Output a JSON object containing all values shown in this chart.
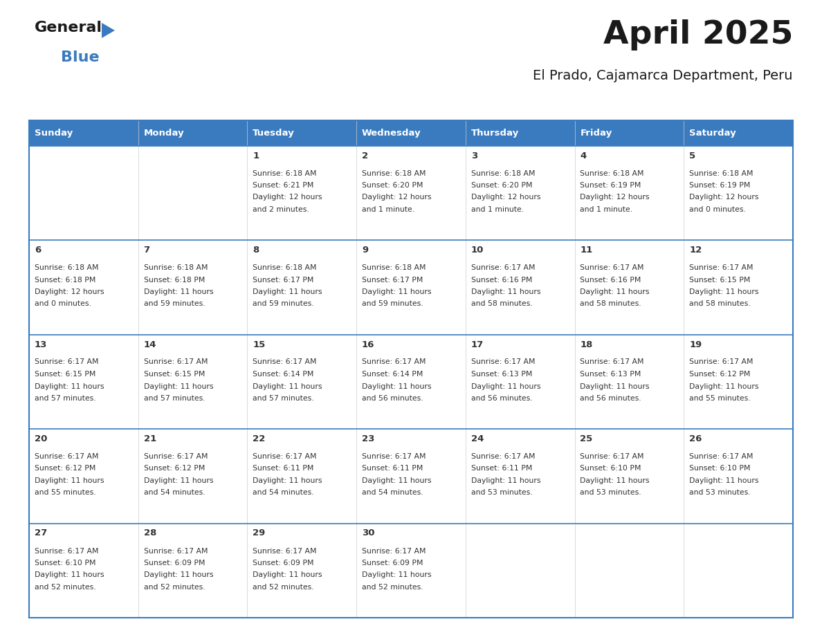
{
  "title": "April 2025",
  "subtitle": "El Prado, Cajamarca Department, Peru",
  "header_bg": "#3a7bbf",
  "header_text": "#ffffff",
  "border_color": "#3a7bbf",
  "text_color": "#333333",
  "cell_bg": "#ffffff",
  "alt_cell_bg": "#f2f2f2",
  "day_headers": [
    "Sunday",
    "Monday",
    "Tuesday",
    "Wednesday",
    "Thursday",
    "Friday",
    "Saturday"
  ],
  "weeks": [
    [
      {
        "day": "",
        "lines": []
      },
      {
        "day": "",
        "lines": []
      },
      {
        "day": "1",
        "lines": [
          "Sunrise: 6:18 AM",
          "Sunset: 6:21 PM",
          "Daylight: 12 hours",
          "and 2 minutes."
        ]
      },
      {
        "day": "2",
        "lines": [
          "Sunrise: 6:18 AM",
          "Sunset: 6:20 PM",
          "Daylight: 12 hours",
          "and 1 minute."
        ]
      },
      {
        "day": "3",
        "lines": [
          "Sunrise: 6:18 AM",
          "Sunset: 6:20 PM",
          "Daylight: 12 hours",
          "and 1 minute."
        ]
      },
      {
        "day": "4",
        "lines": [
          "Sunrise: 6:18 AM",
          "Sunset: 6:19 PM",
          "Daylight: 12 hours",
          "and 1 minute."
        ]
      },
      {
        "day": "5",
        "lines": [
          "Sunrise: 6:18 AM",
          "Sunset: 6:19 PM",
          "Daylight: 12 hours",
          "and 0 minutes."
        ]
      }
    ],
    [
      {
        "day": "6",
        "lines": [
          "Sunrise: 6:18 AM",
          "Sunset: 6:18 PM",
          "Daylight: 12 hours",
          "and 0 minutes."
        ]
      },
      {
        "day": "7",
        "lines": [
          "Sunrise: 6:18 AM",
          "Sunset: 6:18 PM",
          "Daylight: 11 hours",
          "and 59 minutes."
        ]
      },
      {
        "day": "8",
        "lines": [
          "Sunrise: 6:18 AM",
          "Sunset: 6:17 PM",
          "Daylight: 11 hours",
          "and 59 minutes."
        ]
      },
      {
        "day": "9",
        "lines": [
          "Sunrise: 6:18 AM",
          "Sunset: 6:17 PM",
          "Daylight: 11 hours",
          "and 59 minutes."
        ]
      },
      {
        "day": "10",
        "lines": [
          "Sunrise: 6:17 AM",
          "Sunset: 6:16 PM",
          "Daylight: 11 hours",
          "and 58 minutes."
        ]
      },
      {
        "day": "11",
        "lines": [
          "Sunrise: 6:17 AM",
          "Sunset: 6:16 PM",
          "Daylight: 11 hours",
          "and 58 minutes."
        ]
      },
      {
        "day": "12",
        "lines": [
          "Sunrise: 6:17 AM",
          "Sunset: 6:15 PM",
          "Daylight: 11 hours",
          "and 58 minutes."
        ]
      }
    ],
    [
      {
        "day": "13",
        "lines": [
          "Sunrise: 6:17 AM",
          "Sunset: 6:15 PM",
          "Daylight: 11 hours",
          "and 57 minutes."
        ]
      },
      {
        "day": "14",
        "lines": [
          "Sunrise: 6:17 AM",
          "Sunset: 6:15 PM",
          "Daylight: 11 hours",
          "and 57 minutes."
        ]
      },
      {
        "day": "15",
        "lines": [
          "Sunrise: 6:17 AM",
          "Sunset: 6:14 PM",
          "Daylight: 11 hours",
          "and 57 minutes."
        ]
      },
      {
        "day": "16",
        "lines": [
          "Sunrise: 6:17 AM",
          "Sunset: 6:14 PM",
          "Daylight: 11 hours",
          "and 56 minutes."
        ]
      },
      {
        "day": "17",
        "lines": [
          "Sunrise: 6:17 AM",
          "Sunset: 6:13 PM",
          "Daylight: 11 hours",
          "and 56 minutes."
        ]
      },
      {
        "day": "18",
        "lines": [
          "Sunrise: 6:17 AM",
          "Sunset: 6:13 PM",
          "Daylight: 11 hours",
          "and 56 minutes."
        ]
      },
      {
        "day": "19",
        "lines": [
          "Sunrise: 6:17 AM",
          "Sunset: 6:12 PM",
          "Daylight: 11 hours",
          "and 55 minutes."
        ]
      }
    ],
    [
      {
        "day": "20",
        "lines": [
          "Sunrise: 6:17 AM",
          "Sunset: 6:12 PM",
          "Daylight: 11 hours",
          "and 55 minutes."
        ]
      },
      {
        "day": "21",
        "lines": [
          "Sunrise: 6:17 AM",
          "Sunset: 6:12 PM",
          "Daylight: 11 hours",
          "and 54 minutes."
        ]
      },
      {
        "day": "22",
        "lines": [
          "Sunrise: 6:17 AM",
          "Sunset: 6:11 PM",
          "Daylight: 11 hours",
          "and 54 minutes."
        ]
      },
      {
        "day": "23",
        "lines": [
          "Sunrise: 6:17 AM",
          "Sunset: 6:11 PM",
          "Daylight: 11 hours",
          "and 54 minutes."
        ]
      },
      {
        "day": "24",
        "lines": [
          "Sunrise: 6:17 AM",
          "Sunset: 6:11 PM",
          "Daylight: 11 hours",
          "and 53 minutes."
        ]
      },
      {
        "day": "25",
        "lines": [
          "Sunrise: 6:17 AM",
          "Sunset: 6:10 PM",
          "Daylight: 11 hours",
          "and 53 minutes."
        ]
      },
      {
        "day": "26",
        "lines": [
          "Sunrise: 6:17 AM",
          "Sunset: 6:10 PM",
          "Daylight: 11 hours",
          "and 53 minutes."
        ]
      }
    ],
    [
      {
        "day": "27",
        "lines": [
          "Sunrise: 6:17 AM",
          "Sunset: 6:10 PM",
          "Daylight: 11 hours",
          "and 52 minutes."
        ]
      },
      {
        "day": "28",
        "lines": [
          "Sunrise: 6:17 AM",
          "Sunset: 6:09 PM",
          "Daylight: 11 hours",
          "and 52 minutes."
        ]
      },
      {
        "day": "29",
        "lines": [
          "Sunrise: 6:17 AM",
          "Sunset: 6:09 PM",
          "Daylight: 11 hours",
          "and 52 minutes."
        ]
      },
      {
        "day": "30",
        "lines": [
          "Sunrise: 6:17 AM",
          "Sunset: 6:09 PM",
          "Daylight: 11 hours",
          "and 52 minutes."
        ]
      },
      {
        "day": "",
        "lines": []
      },
      {
        "day": "",
        "lines": []
      },
      {
        "day": "",
        "lines": []
      }
    ]
  ]
}
